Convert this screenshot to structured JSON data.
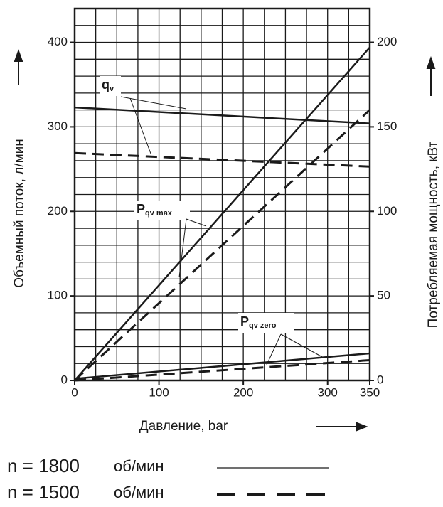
{
  "chart_data": {
    "type": "line",
    "x_label": "Давление, bar",
    "y_label": "Объемный поток, л/мин",
    "y2_label": "Потребляемая мощность, кВт",
    "x": [
      0,
      350
    ],
    "xlim": [
      0,
      350
    ],
    "xticks": [
      0,
      100,
      200,
      300,
      350
    ],
    "ylim": [
      0,
      440
    ],
    "yticks": [
      0,
      100,
      200,
      300,
      400
    ],
    "y2lim": [
      0,
      220
    ],
    "y2ticks": [
      0,
      50,
      100,
      150,
      200
    ],
    "grid": {
      "x_step": 25,
      "y_step": 20
    },
    "series": [
      {
        "values": [
          323,
          304
        ],
        "axis": "y",
        "dash": "solid",
        "color": "#1a1a1a"
      },
      {
        "values": [
          269,
          253
        ],
        "axis": "y",
        "dash": "dashed",
        "color": "#1a1a1a"
      },
      {
        "values": [
          0,
          197
        ],
        "axis": "y2",
        "dash": "solid",
        "color": "#1a1a1a"
      },
      {
        "values": [
          0,
          160
        ],
        "axis": "y2",
        "dash": "dashed",
        "color": "#1a1a1a"
      },
      {
        "values": [
          1,
          16
        ],
        "axis": "y2",
        "dash": "solid",
        "color": "#1a1a1a"
      },
      {
        "values": [
          0,
          12
        ],
        "axis": "y2",
        "dash": "dashed",
        "color": "#1a1a1a"
      }
    ],
    "annotations": [
      {
        "text": "q",
        "sub": "v"
      },
      {
        "text": "P",
        "sub": "qv max"
      },
      {
        "text": "P",
        "sub": "qv zero"
      }
    ],
    "legend": [
      {
        "label": "n = 1800",
        "unit": "об/мин",
        "dash": "solid"
      },
      {
        "label": "n = 1500",
        "unit": "об/мин",
        "dash": "dashed"
      }
    ]
  }
}
